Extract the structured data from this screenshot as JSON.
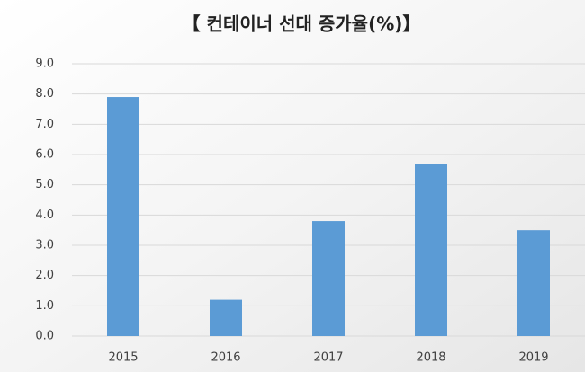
{
  "chart_data": {
    "type": "bar",
    "title": "【 컨테이너 선대 증가율(%)】",
    "categories": [
      "2015",
      "2016",
      "2017",
      "2018",
      "2019"
    ],
    "values": [
      7.9,
      1.2,
      3.8,
      5.7,
      3.5
    ],
    "color": "#5b9bd5",
    "ylim": [
      0,
      9
    ],
    "yticks": [
      {
        "value": 0,
        "label": "0.0"
      },
      {
        "value": 1,
        "label": "1.0"
      },
      {
        "value": 2,
        "label": "2.0"
      },
      {
        "value": 3,
        "label": "3.0"
      },
      {
        "value": 4,
        "label": "4.0"
      },
      {
        "value": 5,
        "label": "5.0"
      },
      {
        "value": 6,
        "label": "6.0"
      },
      {
        "value": 7,
        "label": "7.0"
      },
      {
        "value": 8,
        "label": "8.0"
      },
      {
        "value": 9,
        "label": "9.0"
      }
    ],
    "grid": true
  }
}
